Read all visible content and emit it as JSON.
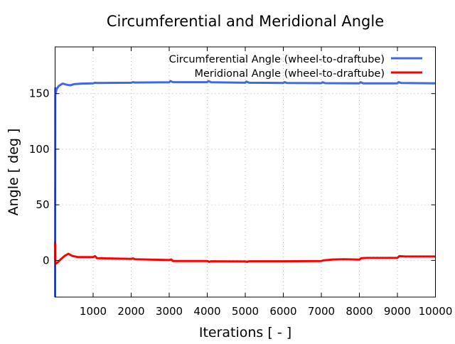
{
  "chart_data": {
    "type": "line",
    "title": "Circumferential and Meridional Angle",
    "xlabel": "Iterations [ - ]",
    "ylabel": "Angle [ deg ]",
    "xlim": [
      0,
      10000
    ],
    "ylim": [
      -33,
      192
    ],
    "xticks": [
      1000,
      2000,
      3000,
      4000,
      5000,
      6000,
      7000,
      8000,
      9000,
      10000
    ],
    "yticks": [
      0,
      50,
      100,
      150
    ],
    "grid": true,
    "legend_position": "top-right",
    "series": [
      {
        "name": "Circumferential Angle (wheel-to-draftube)",
        "color": "#4169e1",
        "x": [
          0,
          5,
          15,
          40,
          100,
          200,
          300,
          400,
          500,
          700,
          1000,
          1050,
          1100,
          2000,
          2050,
          2100,
          3000,
          3030,
          3100,
          4000,
          4030,
          4100,
          5000,
          5030,
          5100,
          6000,
          6030,
          6100,
          7000,
          7030,
          7100,
          8000,
          8030,
          8100,
          9000,
          9030,
          9100,
          10000
        ],
        "y": [
          -33,
          155,
          150,
          154,
          157,
          159,
          158,
          157.5,
          158.5,
          159,
          159.2,
          159.8,
          159.5,
          159.8,
          160.3,
          160,
          160.2,
          161.3,
          160.3,
          160.3,
          161.3,
          160.2,
          159.8,
          160.8,
          159.8,
          159.5,
          160.3,
          159.5,
          159.4,
          160.2,
          159.4,
          159.3,
          160.2,
          159.3,
          159.3,
          160.3,
          159.5,
          159.3
        ]
      },
      {
        "name": "Meridional Angle (wheel-to-draftube)",
        "color": "#ff0000",
        "x": [
          0,
          5,
          15,
          60,
          150,
          250,
          350,
          450,
          600,
          1000,
          1050,
          1100,
          2000,
          2050,
          2100,
          3000,
          3050,
          3100,
          4000,
          4050,
          4100,
          5000,
          5050,
          5100,
          6000,
          7000,
          7050,
          7300,
          7600,
          8000,
          8050,
          8200,
          9000,
          9050,
          9200,
          10000
        ],
        "y": [
          16,
          0,
          -3,
          -2,
          1,
          4,
          6,
          4,
          3,
          3,
          3.8,
          2,
          1.3,
          1.8,
          1,
          0.3,
          0.8,
          -0.5,
          -0.5,
          -1.3,
          -0.8,
          -1,
          -1.3,
          -0.8,
          -0.8,
          -0.5,
          0,
          0.8,
          1,
          0.7,
          2,
          2.2,
          2.2,
          3.8,
          3.5,
          3.5
        ]
      }
    ]
  }
}
